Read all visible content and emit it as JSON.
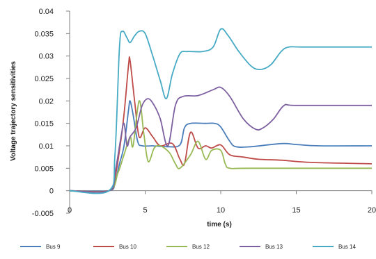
{
  "chart_data": {
    "type": "line",
    "title": "",
    "xlabel": "time (s)",
    "ylabel": "Voltage trajectory sensitivities",
    "xlim": [
      0,
      20
    ],
    "ylim": [
      -0.005,
      0.04
    ],
    "xticks": [
      0,
      5,
      10,
      15,
      20
    ],
    "xtick_labels": [
      "0",
      "5",
      "10",
      "15",
      "20"
    ],
    "yticks": [
      -0.005,
      0,
      0.005,
      0.01,
      0.015,
      0.02,
      0.025,
      0.03,
      0.035,
      0.04
    ],
    "ytick_labels": [
      "-0.005",
      "0",
      "0.005",
      "0.01",
      "0.015",
      "0.02",
      "0.025",
      "0.03",
      "0.035",
      "0.04"
    ],
    "grid": false,
    "legend_position": "bottom",
    "series": [
      {
        "name": "Bus 9",
        "color": "#4a7ebb",
        "points": [
          [
            0,
            0
          ],
          [
            2.6,
            0
          ],
          [
            3.0,
            0.002
          ],
          [
            3.3,
            0.006
          ],
          [
            3.6,
            0.01
          ],
          [
            3.9,
            0.018
          ],
          [
            4.0,
            0.02
          ],
          [
            4.2,
            0.017
          ],
          [
            4.5,
            0.011
          ],
          [
            4.8,
            0.01
          ],
          [
            5.5,
            0.01
          ],
          [
            6.5,
            0.0098
          ],
          [
            7.3,
            0.0102
          ],
          [
            7.6,
            0.014
          ],
          [
            8.0,
            0.015
          ],
          [
            9.0,
            0.015
          ],
          [
            9.6,
            0.015
          ],
          [
            10.0,
            0.0142
          ],
          [
            10.6,
            0.011
          ],
          [
            11.0,
            0.0098
          ],
          [
            12.0,
            0.0098
          ],
          [
            14.0,
            0.0105
          ],
          [
            15.0,
            0.0103
          ],
          [
            16.5,
            0.01
          ],
          [
            20,
            0.01
          ]
        ]
      },
      {
        "name": "Bus 10",
        "color": "#be4b48",
        "points": [
          [
            0,
            0
          ],
          [
            2.6,
            0
          ],
          [
            3.0,
            0.003
          ],
          [
            3.3,
            0.009
          ],
          [
            3.6,
            0.017
          ],
          [
            3.9,
            0.028
          ],
          [
            4.0,
            0.029
          ],
          [
            4.3,
            0.02
          ],
          [
            4.6,
            0.012
          ],
          [
            5.0,
            0.014
          ],
          [
            5.5,
            0.012
          ],
          [
            6.0,
            0.01
          ],
          [
            6.8,
            0.0105
          ],
          [
            7.3,
            0.007
          ],
          [
            7.6,
            0.006
          ],
          [
            8.0,
            0.013
          ],
          [
            8.5,
            0.0095
          ],
          [
            9.0,
            0.01
          ],
          [
            9.4,
            0.0095
          ],
          [
            10.0,
            0.0102
          ],
          [
            10.6,
            0.008
          ],
          [
            11.5,
            0.0075
          ],
          [
            12.5,
            0.007
          ],
          [
            14.0,
            0.0068
          ],
          [
            16.0,
            0.0063
          ],
          [
            20,
            0.006
          ]
        ]
      },
      {
        "name": "Bus 12",
        "color": "#98b954",
        "points": [
          [
            0,
            0
          ],
          [
            2.6,
            0
          ],
          [
            3.2,
            0.004
          ],
          [
            3.6,
            0.008
          ],
          [
            4.0,
            0.012
          ],
          [
            4.2,
            0.01
          ],
          [
            4.6,
            0.02
          ],
          [
            4.9,
            0.013
          ],
          [
            5.2,
            0.0065
          ],
          [
            5.6,
            0.0095
          ],
          [
            6.0,
            0.01
          ],
          [
            6.6,
            0.0085
          ],
          [
            7.0,
            0.006
          ],
          [
            7.3,
            0.005
          ],
          [
            8.0,
            0.008
          ],
          [
            8.5,
            0.011
          ],
          [
            9.0,
            0.007
          ],
          [
            9.4,
            0.009
          ],
          [
            10.0,
            0.009
          ],
          [
            10.3,
            0.006
          ],
          [
            10.6,
            0.005
          ],
          [
            12.0,
            0.005
          ],
          [
            20,
            0.005
          ]
        ]
      },
      {
        "name": "Bus 13",
        "color": "#7d60a0",
        "points": [
          [
            0,
            0
          ],
          [
            2.6,
            0
          ],
          [
            3.0,
            0.004
          ],
          [
            3.4,
            0.012
          ],
          [
            3.6,
            0.015
          ],
          [
            3.8,
            0.01
          ],
          [
            4.0,
            0.012
          ],
          [
            4.4,
            0.014
          ],
          [
            4.8,
            0.019
          ],
          [
            5.2,
            0.0205
          ],
          [
            5.6,
            0.019
          ],
          [
            6.0,
            0.016
          ],
          [
            6.5,
            0.01
          ],
          [
            7.0,
            0.019
          ],
          [
            7.5,
            0.021
          ],
          [
            8.5,
            0.0212
          ],
          [
            9.5,
            0.0225
          ],
          [
            10.0,
            0.023
          ],
          [
            10.6,
            0.021
          ],
          [
            11.5,
            0.016
          ],
          [
            12.3,
            0.0137
          ],
          [
            12.8,
            0.014
          ],
          [
            13.5,
            0.016
          ],
          [
            14.2,
            0.019
          ],
          [
            15.0,
            0.019
          ],
          [
            20,
            0.019
          ]
        ]
      },
      {
        "name": "Bus 14",
        "color": "#46aac5",
        "points": [
          [
            0,
            0
          ],
          [
            2.6,
            0
          ],
          [
            3.0,
            0.008
          ],
          [
            3.3,
            0.032
          ],
          [
            3.5,
            0.0355
          ],
          [
            3.8,
            0.034
          ],
          [
            4.0,
            0.033
          ],
          [
            4.3,
            0.0345
          ],
          [
            4.6,
            0.0355
          ],
          [
            5.0,
            0.035
          ],
          [
            5.5,
            0.03
          ],
          [
            6.0,
            0.0245
          ],
          [
            6.4,
            0.0205
          ],
          [
            6.8,
            0.026
          ],
          [
            7.3,
            0.0305
          ],
          [
            7.8,
            0.031
          ],
          [
            8.8,
            0.031
          ],
          [
            9.5,
            0.032
          ],
          [
            10.0,
            0.036
          ],
          [
            10.5,
            0.0345
          ],
          [
            11.2,
            0.031
          ],
          [
            12.0,
            0.0278
          ],
          [
            12.6,
            0.027
          ],
          [
            13.3,
            0.028
          ],
          [
            14.0,
            0.031
          ],
          [
            14.5,
            0.032
          ],
          [
            15.5,
            0.032
          ],
          [
            20,
            0.032
          ]
        ]
      }
    ]
  }
}
